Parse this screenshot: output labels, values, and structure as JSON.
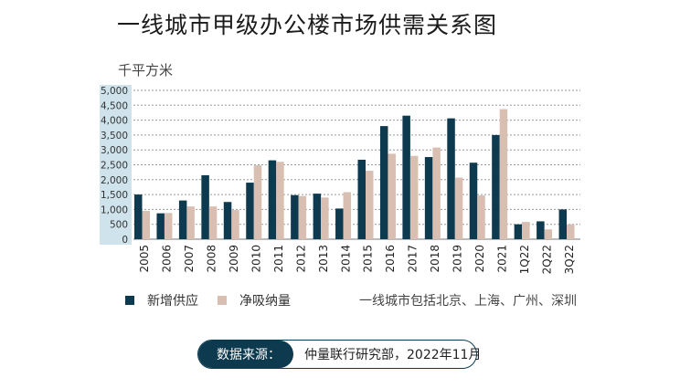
{
  "title": "一线城市甲级办公楼市场供需关系图",
  "unit": "千平方米",
  "legend": [
    {
      "label": "新增供应",
      "color": "#0d3a4e"
    },
    {
      "label": "净吸纳量",
      "color": "#d8bfb2"
    }
  ],
  "note": "一线城市包括北京、上海、广州、深圳",
  "source": {
    "label": "数据来源：",
    "text": "仲量联行研究部，2022年11月"
  },
  "colors": {
    "axis_band": "#cfe3ec",
    "grid": "#9a9a9a"
  },
  "chart_data": {
    "type": "bar",
    "categories": [
      "2005",
      "2006",
      "2007",
      "2008",
      "2009",
      "2010",
      "2011",
      "2012",
      "2013",
      "2014",
      "2015",
      "2016",
      "2017",
      "2018",
      "2019",
      "2020",
      "2021",
      "1Q22",
      "2Q22",
      "3Q22"
    ],
    "series": [
      {
        "name": "新增供应",
        "values": [
          1500,
          870,
          1300,
          2150,
          1250,
          1900,
          2650,
          1480,
          1530,
          1030,
          2670,
          3800,
          4150,
          2760,
          4060,
          2570,
          3500,
          500,
          600,
          1000
        ]
      },
      {
        "name": "净吸纳量",
        "values": [
          950,
          880,
          1100,
          1100,
          980,
          2480,
          2600,
          1450,
          1400,
          1580,
          2300,
          2870,
          2800,
          3080,
          2070,
          1470,
          4370,
          580,
          330,
          500
        ]
      }
    ],
    "ylim": [
      0,
      5000
    ],
    "yticks": [
      "0",
      "500",
      "1,000",
      "1,500",
      "2,000",
      "2,500",
      "3,000",
      "3,500",
      "4,000",
      "4,500",
      "5,000"
    ],
    "grid": true,
    "legend_position": "bottom-left"
  }
}
